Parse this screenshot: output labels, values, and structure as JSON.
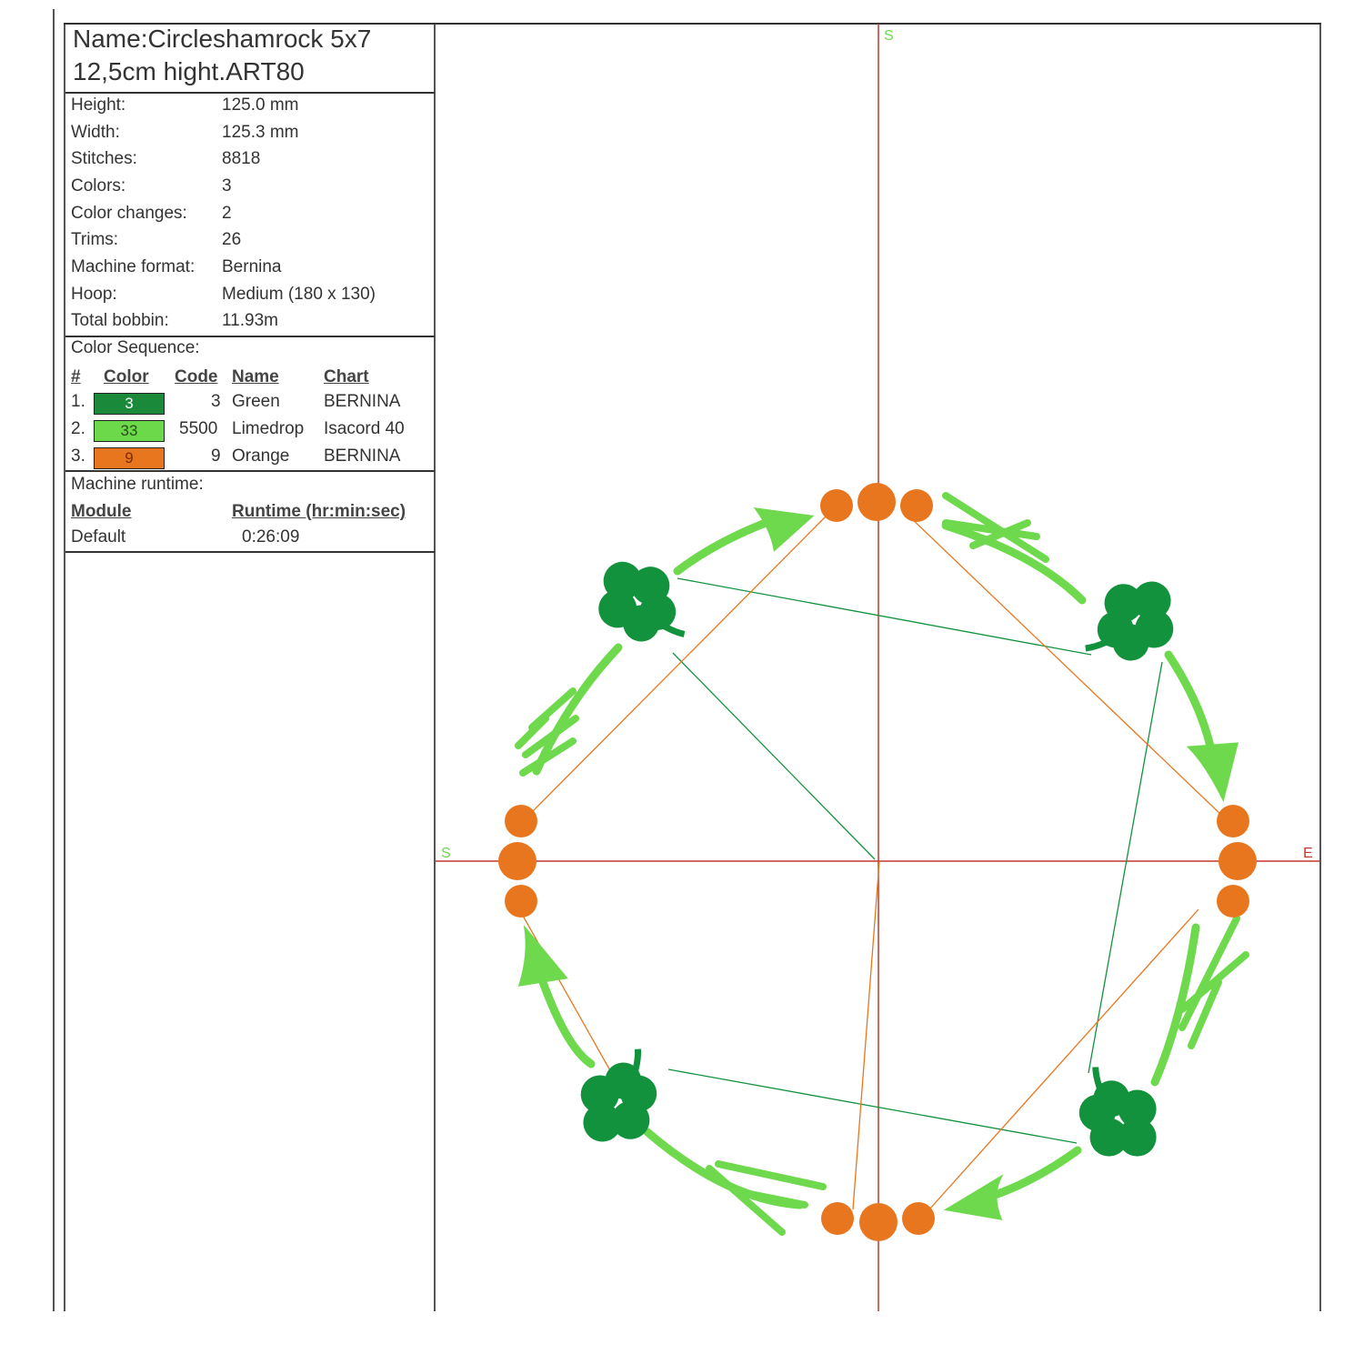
{
  "design": {
    "name_line1": "Name:Circleshamrock 5x7",
    "name_line2": "12,5cm hight.ART80"
  },
  "properties": [
    {
      "label": "Height:",
      "value": "125.0 mm"
    },
    {
      "label": "Width:",
      "value": "125.3 mm"
    },
    {
      "label": "Stitches:",
      "value": "8818"
    },
    {
      "label": "Colors:",
      "value": "3"
    },
    {
      "label": "Color changes:",
      "value": "2"
    },
    {
      "label": "Trims:",
      "value": "26"
    },
    {
      "label": "Machine format:",
      "value": "Bernina"
    },
    {
      "label": "Hoop:",
      "value": "Medium (180 x 130)"
    },
    {
      "label": "Total bobbin:",
      "value": "11.93m"
    }
  ],
  "color_sequence": {
    "heading": "Color Sequence:",
    "headers": {
      "num": "#",
      "color": "Color",
      "code": "Code",
      "name": "Name",
      "chart": "Chart"
    },
    "rows": [
      {
        "num": "1.",
        "swatch_label": "3",
        "swatch_color": "#1a8a3a",
        "code": "3",
        "name": "Green",
        "chart": "BERNINA"
      },
      {
        "num": "2.",
        "swatch_label": "33",
        "swatch_color": "#6cd94a",
        "code": "5500",
        "name": "Limedrop",
        "chart": "Isacord 40"
      },
      {
        "num": "3.",
        "swatch_label": "9",
        "swatch_color": "#e8761e",
        "code": "9",
        "name": "Orange",
        "chart": "BERNINA"
      }
    ]
  },
  "runtime": {
    "heading": "Machine runtime:",
    "headers": {
      "module": "Module",
      "runtime": "Runtime (hr:min:sec)"
    },
    "rows": [
      {
        "module": "Default",
        "runtime": "0:26:09"
      }
    ]
  },
  "axis_labels": {
    "top": "S",
    "left": "S",
    "right": "E"
  },
  "colors": {
    "dark_green": "#13923e",
    "lime": "#6ed94c",
    "orange": "#e8761e",
    "axis": "#c0392b"
  }
}
